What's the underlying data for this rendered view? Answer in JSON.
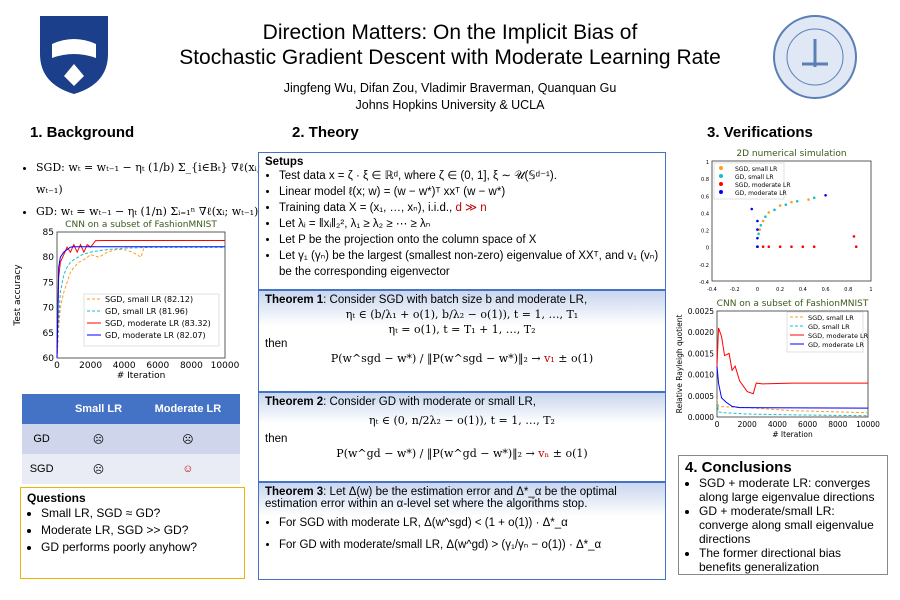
{
  "header": {
    "title_line1": "Direction Matters: On the Implicit Bias of",
    "title_line2": "Stochastic Gradient Descent with Moderate Learning Rate",
    "authors": "Jingfeng Wu, Difan Zou, Vladimir Braverman, Quanquan Gu",
    "affiliation": "Johns Hopkins University & UCLA",
    "logo_left": "Johns Hopkins University shield",
    "logo_right": "University of California seal"
  },
  "background": {
    "heading": "1. Background",
    "sgd_formula": "SGD: wₜ = wₜ₋₁ − ηₜ (1/b) Σ_{i∈Bₜ} ∇ℓ(xᵢ; wₜ₋₁)",
    "gd_formula": "GD: wₜ = wₜ₋₁ − ηₜ (1/n) Σᵢ₌₁ⁿ ∇ℓ(xᵢ; wₜ₋₁)",
    "table": {
      "headers": [
        "",
        "Small LR",
        "Moderate LR"
      ],
      "rows": [
        [
          "GD",
          "☹",
          "☹"
        ],
        [
          "SGD",
          "☹",
          "☺"
        ]
      ]
    },
    "questions": {
      "title": "Questions",
      "items": [
        "Small LR, SGD ≈ GD?",
        "Moderate LR, SGD >> GD?",
        "GD performs poorly anyhow?"
      ]
    }
  },
  "theory": {
    "heading": "2. Theory",
    "setups": {
      "title": "Setups",
      "items": [
        "Test data x = ζ · ξ ∈ ℝᵈ, where ζ ∈ (0, 1], ξ ∼ 𝒰(𝕊ᵈ⁻¹).",
        "Linear model ℓ(x; w) = (w − w*)ᵀ xxᵀ (w − w*)",
        "Training data X = (x₁, …, xₙ), i.i.d.,",
        "Let λᵢ = ‖xᵢ‖₂², λ₁ ≥ λ₂ ≥ ⋯ ≥ λₙ",
        "Let P be the projection onto the column space of X",
        "Let γ₁ (γₙ) be the largest (smallest non-zero) eigenvalue of XXᵀ, and v₁ (vₙ) be the corresponding eigenvector"
      ],
      "d_gg_n": "d ≫ n"
    },
    "theorem1": {
      "title": "Theorem 1",
      "text": ": Consider SGD with batch size b and moderate LR,",
      "eq1": "ηₜ ∈ (b/λ₁ + o(1), b/λ₂ − o(1)), t = 1, …, T₁",
      "eq2": "ηₜ = o(1),  t = T₁ + 1, …, T₂",
      "then": "then",
      "result": "P(w^sgd − w*) / ‖P(w^sgd − w*)‖₂ → ",
      "result_v": "v₁",
      "result_tail": " ± o(1)"
    },
    "theorem2": {
      "title": "Theorem 2",
      "text": ": Consider GD with moderate or small LR,",
      "eq": "ηₜ ∈ (0, n/2λ₂ − o(1)),    t = 1, …, T₂",
      "then": "then",
      "result": "P(w^gd − w*) / ‖P(w^gd − w*)‖₂ → ",
      "result_v": "vₙ",
      "result_tail": " ± o(1)"
    },
    "theorem3": {
      "title": "Theorem 3",
      "text": ": Let Δ(w) be the estimation error and Δ*_α be the optimal estimation error within an α-level set where the algorithms stop.",
      "items": [
        "For SGD with moderate LR, Δ(w^sgd) < (1 + o(1)) · Δ*_α",
        "For GD with moderate/small LR, Δ(w^gd) > (γ₁/γₙ − o(1)) · Δ*_α"
      ]
    }
  },
  "verifications": {
    "heading": "3. Verifications"
  },
  "conclusions": {
    "heading": "4. Conclusions",
    "items": [
      "SGD + moderate LR: converges along large eigenvalue directions",
      "GD + moderate/small LR: converge along small eigenvalue directions",
      "The former directional bias benefits generalization"
    ]
  },
  "chart_data": [
    {
      "type": "line",
      "title": "CNN on a subset of FashionMNIST",
      "xlabel": "# Iteration",
      "ylabel": "Test accuracy",
      "xlim": [
        0,
        10000
      ],
      "ylim": [
        60,
        85
      ],
      "xticks": [
        0,
        2000,
        4000,
        6000,
        8000,
        10000
      ],
      "yticks": [
        60,
        65,
        70,
        75,
        80,
        85
      ],
      "legend": "bottom-right",
      "series": [
        {
          "name": "SGD, small LR (82.12)",
          "color": "#ff9f1c",
          "dash": true,
          "x": [
            0,
            100,
            200,
            400,
            600,
            800,
            1000,
            1300,
            1600,
            2000,
            2500,
            3000,
            3500,
            4000,
            4500,
            5000,
            5200
          ],
          "y": [
            60,
            66,
            70,
            73,
            75,
            77,
            78,
            79,
            79.5,
            80.5,
            80,
            81,
            81.5,
            81.5,
            81,
            80,
            82.1
          ]
        },
        {
          "name": "GD, small LR (81.96)",
          "color": "#17becf",
          "dash": true,
          "x": [
            0,
            100,
            200,
            400,
            600,
            800,
            1000,
            1500,
            2000,
            2500,
            3000,
            4000,
            5000,
            6000,
            10000
          ],
          "y": [
            60,
            68,
            73,
            76.5,
            78,
            79,
            79.5,
            80.5,
            81,
            81.3,
            81.5,
            81.8,
            81.9,
            81.96,
            81.96
          ]
        },
        {
          "name": "SGD, moderate LR (83.32)",
          "color": "#ff0000",
          "dash": false,
          "x": [
            0,
            100,
            200,
            400,
            600,
            800,
            1000,
            1200,
            1400,
            1600,
            1800,
            2000,
            2300,
            3000,
            10000
          ],
          "y": [
            60,
            76,
            79,
            80.5,
            82,
            81,
            82.5,
            81,
            82.5,
            81,
            82.5,
            82,
            83.3,
            83.32,
            83.32
          ]
        },
        {
          "name": "GD, moderate LR (82.07)",
          "color": "#0000ff",
          "dash": false,
          "x": [
            0,
            100,
            200,
            400,
            600,
            800,
            1000,
            10000
          ],
          "y": [
            60,
            78,
            80,
            81,
            81.5,
            82,
            82.07,
            82.07
          ]
        }
      ]
    },
    {
      "type": "scatter",
      "title": "2D numerical simulation",
      "xlim": [
        -0.4,
        1.0
      ],
      "ylim": [
        -0.4,
        1.0
      ],
      "xticks": [
        -0.4,
        -0.2,
        0.0,
        0.2,
        0.4,
        0.6,
        0.8,
        1.0
      ],
      "yticks": [
        -0.4,
        -0.2,
        0.0,
        0.2,
        0.4,
        0.6,
        0.8,
        1.0
      ],
      "legend": "top-left",
      "contour_levels": [
        0.008,
        0.04,
        0.12,
        0.25,
        0.48,
        0.69,
        0.81,
        1.0,
        1.28,
        1.44,
        1.69,
        1.96
      ],
      "series": [
        {
          "name": "SGD, small LR",
          "color": "#ff9f1c",
          "x": [
            0.0,
            0.02,
            0.05,
            0.1,
            0.2,
            0.3,
            0.45
          ],
          "y": [
            0.0,
            0.2,
            0.3,
            0.4,
            0.48,
            0.52,
            0.55
          ]
        },
        {
          "name": "GD, small LR",
          "color": "#17becf",
          "x": [
            0.0,
            0.01,
            0.03,
            0.07,
            0.15,
            0.25,
            0.35,
            0.5
          ],
          "y": [
            0.0,
            0.15,
            0.25,
            0.35,
            0.43,
            0.49,
            0.53,
            0.57
          ]
        },
        {
          "name": "SGD, moderate LR",
          "color": "#ff0000",
          "x": [
            0.0,
            0.05,
            0.1,
            0.2,
            0.3,
            0.4,
            0.5,
            0.85,
            0.87
          ],
          "y": [
            0.0,
            0.0,
            0.0,
            0.0,
            0.0,
            0.0,
            0.0,
            0.12,
            0.0
          ]
        },
        {
          "name": "GD, moderate LR",
          "color": "#0000ff",
          "x": [
            0.0,
            0.0,
            0.0,
            0.0,
            -0.05,
            0.6
          ],
          "y": [
            0.0,
            0.1,
            0.2,
            0.3,
            0.44,
            0.6
          ]
        }
      ]
    },
    {
      "type": "line",
      "title": "CNN on a subset of FashionMNIST",
      "xlabel": "# Iteration",
      "ylabel": "Relative Rayleigh quotient",
      "xlim": [
        0,
        10000
      ],
      "ylim": [
        0,
        0.0025
      ],
      "xticks": [
        0,
        2000,
        4000,
        6000,
        8000,
        10000
      ],
      "yticks": [
        "0.0000",
        "0.0005",
        "0.0010",
        "0.0015",
        "0.0020",
        "0.0025"
      ],
      "legend": "top-right",
      "series": [
        {
          "name": "SGD, small LR",
          "color": "#ff9f1c",
          "dash": true,
          "x": [
            0,
            100,
            500,
            2000,
            5000,
            10000
          ],
          "y": [
            0.00042,
            0.00025,
            0.00024,
            0.00022,
            0.00015,
            0.0001
          ]
        },
        {
          "name": "GD, small LR",
          "color": "#17becf",
          "dash": true,
          "x": [
            0,
            100,
            500,
            2000,
            5000,
            10000
          ],
          "y": [
            0.00035,
            0.00012,
            0.0001,
            7e-05,
            5e-05,
            3e-05
          ]
        },
        {
          "name": "SGD, moderate LR",
          "color": "#ff0000",
          "dash": false,
          "x": [
            0,
            100,
            300,
            500,
            800,
            1000,
            1200,
            1500,
            2000,
            2400,
            2600,
            3000,
            5000,
            10000
          ],
          "y": [
            0.0012,
            0.0021,
            0.0019,
            0.00145,
            0.0015,
            0.0011,
            0.0012,
            0.00085,
            0.0006,
            0.00055,
            0.0008,
            0.00078,
            0.0008,
            0.0008
          ]
        },
        {
          "name": "GD, moderate LR",
          "color": "#0000ff",
          "dash": false,
          "x": [
            0,
            100,
            300,
            600,
            1000,
            1500,
            2000,
            10000
          ],
          "y": [
            0.0012,
            0.0008,
            0.00045,
            0.00035,
            0.00025,
            0.00022,
            0.00022,
            0.00021
          ]
        }
      ]
    }
  ]
}
